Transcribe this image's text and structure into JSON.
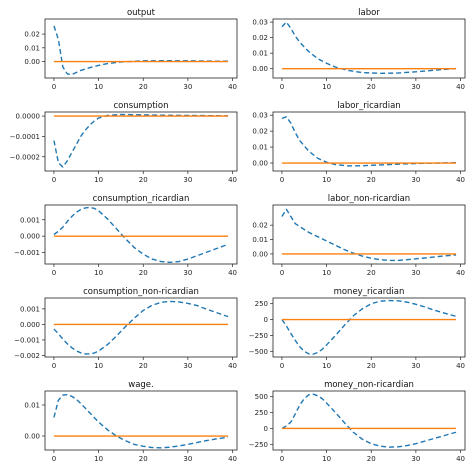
{
  "chart_data": [
    {
      "type": "line",
      "title": "output",
      "xlim": [
        -2,
        41
      ],
      "ylim": [
        -0.012,
        0.031
      ],
      "xticks": [
        0,
        10,
        20,
        30,
        40
      ],
      "yticks": [
        0.0,
        0.01,
        0.02
      ],
      "ytick_labels": [
        "0.00",
        "0.01",
        "0.02"
      ],
      "x": [
        0,
        1,
        2,
        3,
        4,
        5,
        6,
        8,
        10,
        12,
        15,
        20,
        25,
        30,
        35,
        39
      ],
      "series": [
        {
          "style": "dashed",
          "color": "#1f77b4",
          "values": [
            0.026,
            0.016,
            -0.004,
            -0.009,
            -0.0095,
            -0.008,
            -0.0065,
            -0.0045,
            -0.0028,
            -0.0015,
            -0.0003,
            0.0005,
            0.0006,
            0.0005,
            0.0003,
            0.0002
          ]
        },
        {
          "style": "solid",
          "color": "#ff7f0e",
          "values": [
            0,
            0,
            0,
            0,
            0,
            0,
            0,
            0,
            0,
            0,
            0,
            0,
            0,
            0,
            0,
            0
          ]
        }
      ]
    },
    {
      "type": "line",
      "title": "labor",
      "xlim": [
        -2,
        41
      ],
      "ylim": [
        -0.006,
        0.032
      ],
      "xticks": [
        0,
        10,
        20,
        30,
        40
      ],
      "yticks": [
        0.0,
        0.01,
        0.02,
        0.03
      ],
      "ytick_labels": [
        "0.00",
        "0.01",
        "0.02",
        "0.03"
      ],
      "x": [
        0,
        1,
        2,
        3,
        4,
        6,
        8,
        10,
        12,
        15,
        18,
        22,
        26,
        30,
        35,
        39
      ],
      "series": [
        {
          "style": "dashed",
          "color": "#1f77b4",
          "values": [
            0.027,
            0.03,
            0.026,
            0.021,
            0.017,
            0.011,
            0.0065,
            0.0035,
            0.001,
            -0.0012,
            -0.0025,
            -0.003,
            -0.0028,
            -0.002,
            -0.0008,
            0.0001
          ]
        },
        {
          "style": "solid",
          "color": "#ff7f0e",
          "values": [
            0,
            0,
            0,
            0,
            0,
            0,
            0,
            0,
            0,
            0,
            0,
            0,
            0,
            0,
            0,
            0
          ]
        }
      ]
    },
    {
      "type": "line",
      "title": "consumption",
      "xlim": [
        -2,
        41
      ],
      "ylim": [
        -0.00027,
        2e-05
      ],
      "xticks": [
        0,
        10,
        20,
        30,
        40
      ],
      "yticks": [
        0.0,
        -0.0001,
        -0.0002
      ],
      "ytick_labels": [
        "0.0000",
        "−0.0001",
        "−0.0002"
      ],
      "x": [
        0,
        1,
        2,
        3,
        4,
        5,
        6,
        7,
        8,
        9,
        10,
        12,
        15,
        20,
        25,
        30,
        35,
        39
      ],
      "series": [
        {
          "style": "dashed",
          "color": "#1f77b4",
          "values": [
            -0.00012,
            -0.00023,
            -0.00025,
            -0.00022,
            -0.00018,
            -0.00014,
            -0.0001,
            -7e-05,
            -4.5e-05,
            -2.5e-05,
            -1e-05,
            3e-06,
            8e-06,
            6e-06,
            4e-06,
            3e-06,
            2e-06,
            1e-06
          ]
        },
        {
          "style": "solid",
          "color": "#ff7f0e",
          "values": [
            0,
            0,
            0,
            0,
            0,
            0,
            0,
            0,
            0,
            0,
            0,
            0,
            0,
            0,
            0,
            0,
            0,
            0
          ]
        }
      ]
    },
    {
      "type": "line",
      "title": "labor_ricardian",
      "xlim": [
        -2,
        41
      ],
      "ylim": [
        -0.005,
        0.032
      ],
      "xticks": [
        0,
        10,
        20,
        30,
        40
      ],
      "yticks": [
        0.0,
        0.01,
        0.02,
        0.03
      ],
      "ytick_labels": [
        "0.00",
        "0.01",
        "0.02",
        "0.03"
      ],
      "x": [
        0,
        1,
        2,
        3,
        4,
        6,
        8,
        10,
        12,
        15,
        18,
        22,
        26,
        30,
        35,
        39
      ],
      "series": [
        {
          "style": "dashed",
          "color": "#1f77b4",
          "values": [
            0.028,
            0.029,
            0.025,
            0.019,
            0.014,
            0.0075,
            0.003,
            0.0005,
            -0.001,
            -0.0018,
            -0.0017,
            -0.0012,
            -0.0007,
            -0.0003,
            0.0,
            0.0002
          ]
        },
        {
          "style": "solid",
          "color": "#ff7f0e",
          "values": [
            0,
            0,
            0,
            0,
            0,
            0,
            0,
            0,
            0,
            0,
            0,
            0,
            0,
            0,
            0,
            0
          ]
        }
      ]
    },
    {
      "type": "line",
      "title": "consumption_ricardian",
      "xlim": [
        -2,
        41
      ],
      "ylim": [
        -0.0017,
        0.0019
      ],
      "xticks": [
        0,
        10,
        20,
        30,
        40
      ],
      "yticks": [
        0.001,
        0.0,
        -0.001
      ],
      "ytick_labels": [
        "0.001",
        "0.000",
        "−0.001"
      ],
      "x": [
        0,
        1,
        2,
        3,
        4,
        5,
        6,
        7,
        8,
        9,
        10,
        12,
        14,
        16,
        18,
        20,
        22,
        24,
        26,
        28,
        30,
        32,
        34,
        36,
        38,
        39
      ],
      "series": [
        {
          "style": "dashed",
          "color": "#1f77b4",
          "values": [
            0.0001,
            0.0003,
            0.00055,
            0.0009,
            0.0012,
            0.00145,
            0.00162,
            0.00172,
            0.00175,
            0.0017,
            0.00155,
            0.00105,
            0.00045,
            -0.00015,
            -0.0007,
            -0.0011,
            -0.0014,
            -0.00155,
            -0.0016,
            -0.00155,
            -0.0014,
            -0.0012,
            -0.001,
            -0.0008,
            -0.0006,
            -0.0005
          ]
        },
        {
          "style": "solid",
          "color": "#ff7f0e",
          "values": [
            0,
            0,
            0,
            0,
            0,
            0,
            0,
            0,
            0,
            0,
            0,
            0,
            0,
            0,
            0,
            0,
            0,
            0,
            0,
            0,
            0,
            0,
            0,
            0,
            0,
            0
          ]
        }
      ]
    },
    {
      "type": "line",
      "title": "labor_non-ricardian",
      "xlim": [
        -2,
        41
      ],
      "ylim": [
        -0.007,
        0.034
      ],
      "xticks": [
        0,
        10,
        20,
        30,
        40
      ],
      "yticks": [
        0.0,
        0.01,
        0.02
      ],
      "ytick_labels": [
        "0.00",
        "0.01",
        "0.02"
      ],
      "x": [
        0,
        1,
        2,
        3,
        4,
        6,
        8,
        10,
        12,
        14,
        16,
        18,
        20,
        22,
        24,
        26,
        28,
        30,
        33,
        36,
        39
      ],
      "series": [
        {
          "style": "dashed",
          "color": "#1f77b4",
          "values": [
            0.026,
            0.031,
            0.026,
            0.021,
            0.019,
            0.015,
            0.012,
            0.009,
            0.006,
            0.003,
            0.0005,
            -0.0015,
            -0.003,
            -0.004,
            -0.0045,
            -0.0045,
            -0.004,
            -0.0034,
            -0.0025,
            -0.0015,
            -0.0007
          ]
        },
        {
          "style": "solid",
          "color": "#ff7f0e",
          "values": [
            0,
            0,
            0,
            0,
            0,
            0,
            0,
            0,
            0,
            0,
            0,
            0,
            0,
            0,
            0,
            0,
            0,
            0,
            0,
            0,
            0
          ]
        }
      ]
    },
    {
      "type": "line",
      "title": "consumption_non-ricardian",
      "xlim": [
        -2,
        41
      ],
      "ylim": [
        -0.0021,
        0.0017
      ],
      "xticks": [
        0,
        10,
        20,
        30,
        40
      ],
      "yticks": [
        0.001,
        0.0,
        -0.001,
        -0.002
      ],
      "ytick_labels": [
        "0.001",
        "0.000",
        "−0.001",
        "−0.002"
      ],
      "x": [
        0,
        1,
        2,
        3,
        4,
        5,
        6,
        7,
        8,
        9,
        10,
        12,
        14,
        16,
        18,
        20,
        22,
        24,
        26,
        28,
        30,
        32,
        34,
        36,
        38,
        39
      ],
      "series": [
        {
          "style": "dashed",
          "color": "#1f77b4",
          "values": [
            -0.0003,
            -0.0006,
            -0.00095,
            -0.00125,
            -0.0015,
            -0.0017,
            -0.00183,
            -0.0019,
            -0.0019,
            -0.00185,
            -0.00172,
            -0.0013,
            -0.00075,
            -0.00015,
            0.0004,
            0.0009,
            0.00123,
            0.00142,
            0.00148,
            0.00145,
            0.00135,
            0.00122,
            0.001,
            0.0008,
            0.0006,
            0.0005
          ]
        },
        {
          "style": "solid",
          "color": "#ff7f0e",
          "values": [
            0,
            0,
            0,
            0,
            0,
            0,
            0,
            0,
            0,
            0,
            0,
            0,
            0,
            0,
            0,
            0,
            0,
            0,
            0,
            0,
            0,
            0,
            0,
            0,
            0,
            0
          ]
        }
      ]
    },
    {
      "type": "line",
      "title": "money_ricardian",
      "xlim": [
        -2,
        41
      ],
      "ylim": [
        -590,
        340
      ],
      "xticks": [
        0,
        10,
        20,
        30,
        40
      ],
      "yticks": [
        250,
        0,
        -250,
        -500
      ],
      "ytick_labels": [
        "250",
        "0",
        "−250",
        "−500"
      ],
      "x": [
        0,
        1,
        2,
        3,
        4,
        5,
        6,
        7,
        8,
        9,
        10,
        12,
        14,
        16,
        18,
        20,
        22,
        24,
        26,
        28,
        30,
        32,
        34,
        36,
        38,
        39
      ],
      "series": [
        {
          "style": "dashed",
          "color": "#1f77b4",
          "values": [
            0,
            -100,
            -220,
            -330,
            -430,
            -500,
            -540,
            -545,
            -520,
            -470,
            -400,
            -250,
            -90,
            60,
            170,
            250,
            290,
            300,
            295,
            275,
            240,
            200,
            150,
            110,
            70,
            50
          ]
        },
        {
          "style": "solid",
          "color": "#ff7f0e",
          "values": [
            0,
            0,
            0,
            0,
            0,
            0,
            0,
            0,
            0,
            0,
            0,
            0,
            0,
            0,
            0,
            0,
            0,
            0,
            0,
            0,
            0,
            0,
            0,
            0,
            0,
            0
          ]
        }
      ]
    },
    {
      "type": "line",
      "title": "wage.",
      "xlim": [
        -2,
        41
      ],
      "ylim": [
        -0.0045,
        0.0145
      ],
      "xticks": [
        0,
        10,
        20,
        30,
        40
      ],
      "yticks": [
        0.01,
        0.0
      ],
      "ytick_labels": [
        "0.01",
        "0.00"
      ],
      "x": [
        0,
        1,
        2,
        3,
        4,
        5,
        6,
        8,
        10,
        12,
        14,
        16,
        18,
        20,
        22,
        24,
        26,
        28,
        30,
        33,
        36,
        39
      ],
      "series": [
        {
          "style": "dashed",
          "color": "#1f77b4",
          "values": [
            0.006,
            0.0115,
            0.0132,
            0.0133,
            0.0128,
            0.0118,
            0.0105,
            0.0075,
            0.0045,
            0.002,
            0.0,
            -0.0015,
            -0.0027,
            -0.0033,
            -0.0037,
            -0.0038,
            -0.0036,
            -0.0032,
            -0.0027,
            -0.0018,
            -0.001,
            -0.0004
          ]
        },
        {
          "style": "solid",
          "color": "#ff7f0e",
          "values": [
            0,
            0,
            0,
            0,
            0,
            0,
            0,
            0,
            0,
            0,
            0,
            0,
            0,
            0,
            0,
            0,
            0,
            0,
            0,
            0,
            0,
            0
          ]
        }
      ]
    },
    {
      "type": "line",
      "title": "money_non-ricardian",
      "xlim": [
        -2,
        41
      ],
      "ylim": [
        -340,
        590
      ],
      "xticks": [
        0,
        10,
        20,
        30,
        40
      ],
      "yticks": [
        500,
        250,
        0,
        -250
      ],
      "ytick_labels": [
        "500",
        "250",
        "0",
        "−250"
      ],
      "x": [
        0,
        1,
        2,
        3,
        4,
        5,
        6,
        7,
        8,
        9,
        10,
        12,
        14,
        16,
        18,
        20,
        22,
        24,
        26,
        28,
        30,
        32,
        34,
        36,
        38,
        39
      ],
      "series": [
        {
          "style": "dashed",
          "color": "#1f77b4",
          "values": [
            0,
            40,
            100,
            230,
            370,
            470,
            530,
            540,
            515,
            470,
            400,
            250,
            90,
            -60,
            -170,
            -240,
            -280,
            -295,
            -290,
            -270,
            -240,
            -200,
            -160,
            -120,
            -80,
            -60
          ]
        },
        {
          "style": "solid",
          "color": "#ff7f0e",
          "values": [
            0,
            0,
            0,
            0,
            0,
            0,
            0,
            0,
            0,
            0,
            0,
            0,
            0,
            0,
            0,
            0,
            0,
            0,
            0,
            0,
            0,
            0,
            0,
            0,
            0,
            0
          ]
        }
      ]
    }
  ]
}
